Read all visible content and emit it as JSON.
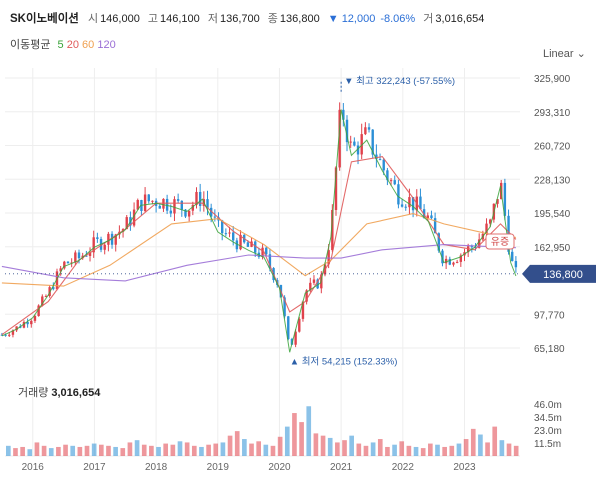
{
  "header": {
    "stock_name": "SK이노베이션",
    "open_label": "시",
    "open": "146,000",
    "high_label": "고",
    "high": "146,100",
    "low_label": "저",
    "low": "136,700",
    "close_label": "종",
    "close": "136,800",
    "change": "▼ 12,000",
    "change_pct": "-8.06%",
    "volume_label": "거",
    "volume": "3,016,654"
  },
  "ma_legend": {
    "title": "이동평균",
    "items": [
      {
        "label": "5",
        "color": "#3aa33a"
      },
      {
        "label": "20",
        "color": "#e05a5a"
      },
      {
        "label": "60",
        "color": "#f0a050"
      },
      {
        "label": "120",
        "color": "#9b6fd6"
      }
    ]
  },
  "scale_toggle": "Linear",
  "colors": {
    "up": "#e0414b",
    "down": "#2b8fd6",
    "current_tag": "#334f8c",
    "annot": "#2b5fa8"
  },
  "chart_data": {
    "type": "candlestick",
    "y_axis_ticks": [
      325900,
      293310,
      260720,
      228130,
      195540,
      162950,
      136800,
      97770,
      65180
    ],
    "y_axis_labels": [
      "325,900",
      "293,310",
      "260,720",
      "228,130",
      "195,540",
      "162,950",
      "136,800",
      "97,770",
      "65,180"
    ],
    "x_axis_labels": [
      "2016",
      "2017",
      "2018",
      "2019",
      "2020",
      "2021",
      "2022",
      "2023"
    ],
    "current_price": 136800,
    "current_price_label": "136,800",
    "max_annotation": {
      "label": "최고 322,243 (-57.55%)",
      "date": "2021-01",
      "value": 322243
    },
    "min_annotation": {
      "label": "최저 54,215 (152.33%)",
      "date": "2020-03",
      "value": 54215
    },
    "event_badge": "유증",
    "price_points": [
      [
        "2015-07",
        78000
      ],
      [
        "2015-10",
        85000
      ],
      [
        "2016-01",
        96000
      ],
      [
        "2016-04",
        118000
      ],
      [
        "2016-07",
        146000
      ],
      [
        "2016-10",
        152000
      ],
      [
        "2017-01",
        165000
      ],
      [
        "2017-04",
        172000
      ],
      [
        "2017-07",
        182000
      ],
      [
        "2017-10",
        206000
      ],
      [
        "2018-01",
        208000
      ],
      [
        "2018-04",
        205000
      ],
      [
        "2018-07",
        200000
      ],
      [
        "2018-10",
        212000
      ],
      [
        "2019-01",
        180000
      ],
      [
        "2019-04",
        170000
      ],
      [
        "2019-07",
        162000
      ],
      [
        "2019-10",
        155000
      ],
      [
        "2020-01",
        125000
      ],
      [
        "2020-03",
        62000
      ],
      [
        "2020-06",
        120000
      ],
      [
        "2020-09",
        130000
      ],
      [
        "2020-11",
        175000
      ],
      [
        "2021-01",
        300000
      ],
      [
        "2021-03",
        255000
      ],
      [
        "2021-06",
        270000
      ],
      [
        "2021-09",
        240000
      ],
      [
        "2021-12",
        215000
      ],
      [
        "2022-03",
        205000
      ],
      [
        "2022-06",
        190000
      ],
      [
        "2022-09",
        150000
      ],
      [
        "2022-12",
        155000
      ],
      [
        "2023-03",
        165000
      ],
      [
        "2023-06",
        185000
      ],
      [
        "2023-08",
        225000
      ],
      [
        "2023-10",
        150000
      ],
      [
        "2023-11",
        136800
      ]
    ],
    "moving_averages": {
      "ma20": [
        [
          "2015-07",
          78000
        ],
        [
          "2016-04",
          110000
        ],
        [
          "2016-10",
          150000
        ],
        [
          "2017-07",
          180000
        ],
        [
          "2018-01",
          205000
        ],
        [
          "2018-10",
          205000
        ],
        [
          "2019-04",
          178000
        ],
        [
          "2019-10",
          158000
        ],
        [
          "2020-03",
          100000
        ],
        [
          "2020-06",
          110000
        ],
        [
          "2020-11",
          150000
        ],
        [
          "2021-03",
          245000
        ],
        [
          "2021-09",
          250000
        ],
        [
          "2022-03",
          210000
        ],
        [
          "2022-09",
          165000
        ],
        [
          "2023-03",
          160000
        ],
        [
          "2023-08",
          185000
        ],
        [
          "2023-11",
          170000
        ]
      ],
      "ma60": [
        [
          "2015-07",
          128000
        ],
        [
          "2016-07",
          125000
        ],
        [
          "2017-04",
          145000
        ],
        [
          "2018-04",
          185000
        ],
        [
          "2019-01",
          190000
        ],
        [
          "2019-10",
          165000
        ],
        [
          "2020-06",
          135000
        ],
        [
          "2020-11",
          150000
        ],
        [
          "2021-06",
          185000
        ],
        [
          "2022-03",
          195000
        ],
        [
          "2022-09",
          185000
        ],
        [
          "2023-06",
          175000
        ],
        [
          "2023-11",
          172000
        ]
      ],
      "ma120": [
        [
          "2015-07",
          144000
        ],
        [
          "2016-07",
          133000
        ],
        [
          "2017-07",
          130000
        ],
        [
          "2018-07",
          145000
        ],
        [
          "2019-07",
          155000
        ],
        [
          "2020-06",
          152000
        ],
        [
          "2021-01",
          152000
        ],
        [
          "2021-09",
          160000
        ],
        [
          "2022-09",
          165000
        ],
        [
          "2023-11",
          162000
        ]
      ]
    },
    "volume": {
      "title": "거래량",
      "value": "3,016,654",
      "y_axis_labels": [
        "46.0m",
        "34.5m",
        "23.0m",
        "11.5m"
      ],
      "y_axis_ticks": [
        46,
        34.5,
        23,
        11.5
      ],
      "bars_million": [
        9,
        7,
        8,
        6,
        12,
        9,
        7,
        8,
        10,
        9,
        8,
        9,
        11,
        10,
        9,
        8,
        7,
        12,
        14,
        10,
        9,
        8,
        11,
        10,
        13,
        12,
        9,
        8,
        10,
        11,
        12,
        18,
        22,
        15,
        11,
        13,
        10,
        9,
        17,
        26,
        38,
        30,
        44,
        20,
        18,
        16,
        12,
        14,
        18,
        11,
        9,
        12,
        15,
        8,
        10,
        13,
        9,
        8,
        7,
        11,
        10,
        8,
        9,
        11,
        15,
        24,
        19,
        12,
        26,
        14,
        11,
        9
      ]
    }
  }
}
